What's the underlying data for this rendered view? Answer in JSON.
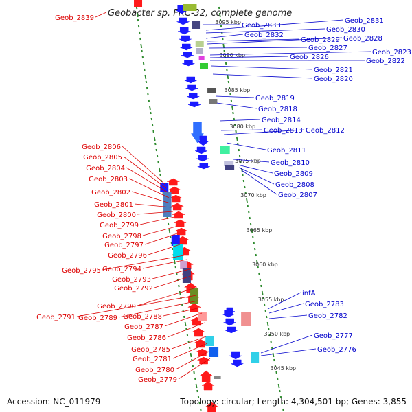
{
  "title": "Geobacter sp. FRC-32, complete genome",
  "footer": {
    "accession": "Accession: NC_011979",
    "summary": "Topology: circular; Length: 4,304,501 bp; Genes: 3,855"
  },
  "colors": {
    "backbone": "#8a8a8a",
    "ring_tick": "#2e8b2e",
    "forward_label": "#0000cc",
    "reverse_label": "#dd0000",
    "forward_arrow": "#1a1aff",
    "reverse_arrow": "#ff1a1a"
  },
  "kbp_marks": [
    "3095 kbp",
    "3090 kbp",
    "3085 kbp",
    "3080 kbp",
    "3075 kbp",
    "3070 kbp",
    "3065 kbp",
    "3060 kbp",
    "3055 kbp",
    "3050 kbp",
    "3045 kbp"
  ],
  "forward_genes": [
    "Geob_2831",
    "Geob_2830",
    "Geob_2833",
    "Geob_2832",
    "Geob_2829",
    "Geob_2828",
    "Geob_2827",
    "Geob_2823",
    "Geob_2826",
    "Geob_2822",
    "Geob_2821",
    "Geob_2820",
    "Geob_2819",
    "Geob_2818",
    "Geob_2814",
    "Geob_2813",
    "Geob_2812",
    "Geob_2811",
    "Geob_2810",
    "Geob_2809",
    "Geob_2808",
    "Geob_2807",
    "infA",
    "Geob_2783",
    "Geob_2782",
    "Geob_2777",
    "Geob_2776"
  ],
  "reverse_genes": [
    "Geob_2839",
    "Geob_2806",
    "Geob_2805",
    "Geob_2804",
    "Geob_2803",
    "Geob_2802",
    "Geob_2801",
    "Geob_2800",
    "Geob_2799",
    "Geob_2798",
    "Geob_2797",
    "Geob_2796",
    "Geob_2795",
    "Geob_2794",
    "Geob_2793",
    "Geob_2792",
    "Geob_2790",
    "Geob_2791",
    "Geob_2789",
    "Geob_2788",
    "Geob_2787",
    "Geob_2786",
    "Geob_2785",
    "Geob_2781",
    "Geob_2780",
    "Geob_2779"
  ]
}
